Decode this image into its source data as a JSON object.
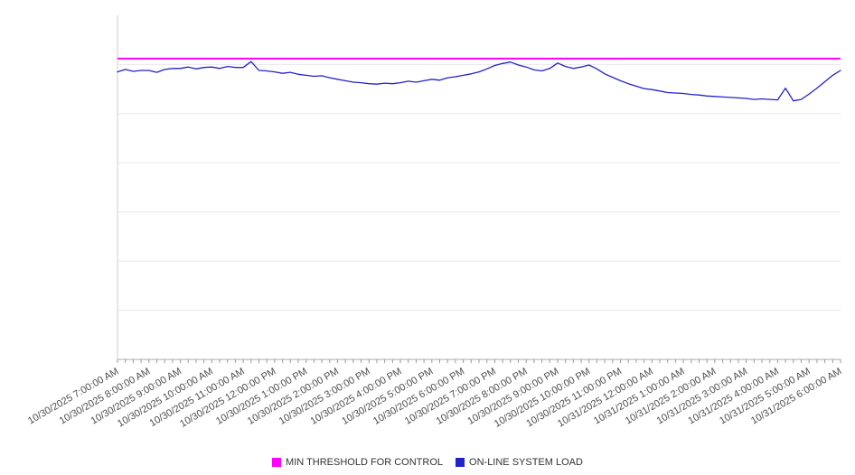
{
  "legend": {
    "items": [
      {
        "label": "MIN THRESHOLD FOR CONTROL",
        "color": "#ff00ff"
      },
      {
        "label": "ON-LINE SYSTEM LOAD",
        "color": "#2222cc"
      }
    ]
  },
  "chart_data": {
    "type": "line",
    "title": "",
    "xlabel": "",
    "ylabel": "",
    "ylim": [
      0,
      700
    ],
    "grid": true,
    "grid_step": 100,
    "legend_position": "bottom",
    "points_per_hour": 4,
    "x_labels": [
      "10/30/2025 7:00:00 AM",
      "10/30/2025 8:00:00 AM",
      "10/30/2025 9:00:00 AM",
      "10/30/2025 10:00:00 AM",
      "10/30/2025 11:00:00 AM",
      "10/30/2025 12:00:00 PM",
      "10/30/2025 1:00:00 PM",
      "10/30/2025 2:00:00 PM",
      "10/30/2025 3:00:00 PM",
      "10/30/2025 4:00:00 PM",
      "10/30/2025 5:00:00 PM",
      "10/30/2025 6:00:00 PM",
      "10/30/2025 7:00:00 PM",
      "10/30/2025 8:00:00 PM",
      "10/30/2025 9:00:00 PM",
      "10/30/2025 10:00:00 PM",
      "10/30/2025 11:00:00 PM",
      "10/31/2025 12:00:00 AM",
      "10/31/2025 1:00:00 AM",
      "10/31/2025 2:00:00 AM",
      "10/31/2025 3:00:00 AM",
      "10/31/2025 4:00:00 AM",
      "10/31/2025 5:00:00 AM",
      "10/31/2025 6:00:00 AM"
    ],
    "series": [
      {
        "name": "MIN THRESHOLD FOR CONTROL",
        "color": "#ff00ff",
        "constant_value": 612
      },
      {
        "name": "ON-LINE SYSTEM LOAD",
        "color": "#2222cc",
        "values": [
          585,
          590,
          586,
          588,
          588,
          584,
          590,
          592,
          592,
          595,
          591,
          594,
          595,
          592,
          596,
          594,
          594,
          606,
          588,
          587,
          585,
          582,
          584,
          580,
          578,
          576,
          577,
          573,
          570,
          567,
          564,
          563,
          561,
          560,
          562,
          561,
          563,
          566,
          564,
          567,
          570,
          568,
          573,
          575,
          578,
          581,
          585,
          591,
          598,
          602,
          605,
          599,
          595,
          589,
          587,
          592,
          603,
          596,
          592,
          595,
          599,
          591,
          581,
          574,
          567,
          561,
          556,
          551,
          549,
          546,
          543,
          542,
          541,
          539,
          538,
          536,
          535,
          534,
          533,
          532,
          531,
          529,
          530,
          529,
          528,
          552,
          526,
          529,
          540,
          552,
          565,
          578,
          588
        ]
      }
    ]
  }
}
